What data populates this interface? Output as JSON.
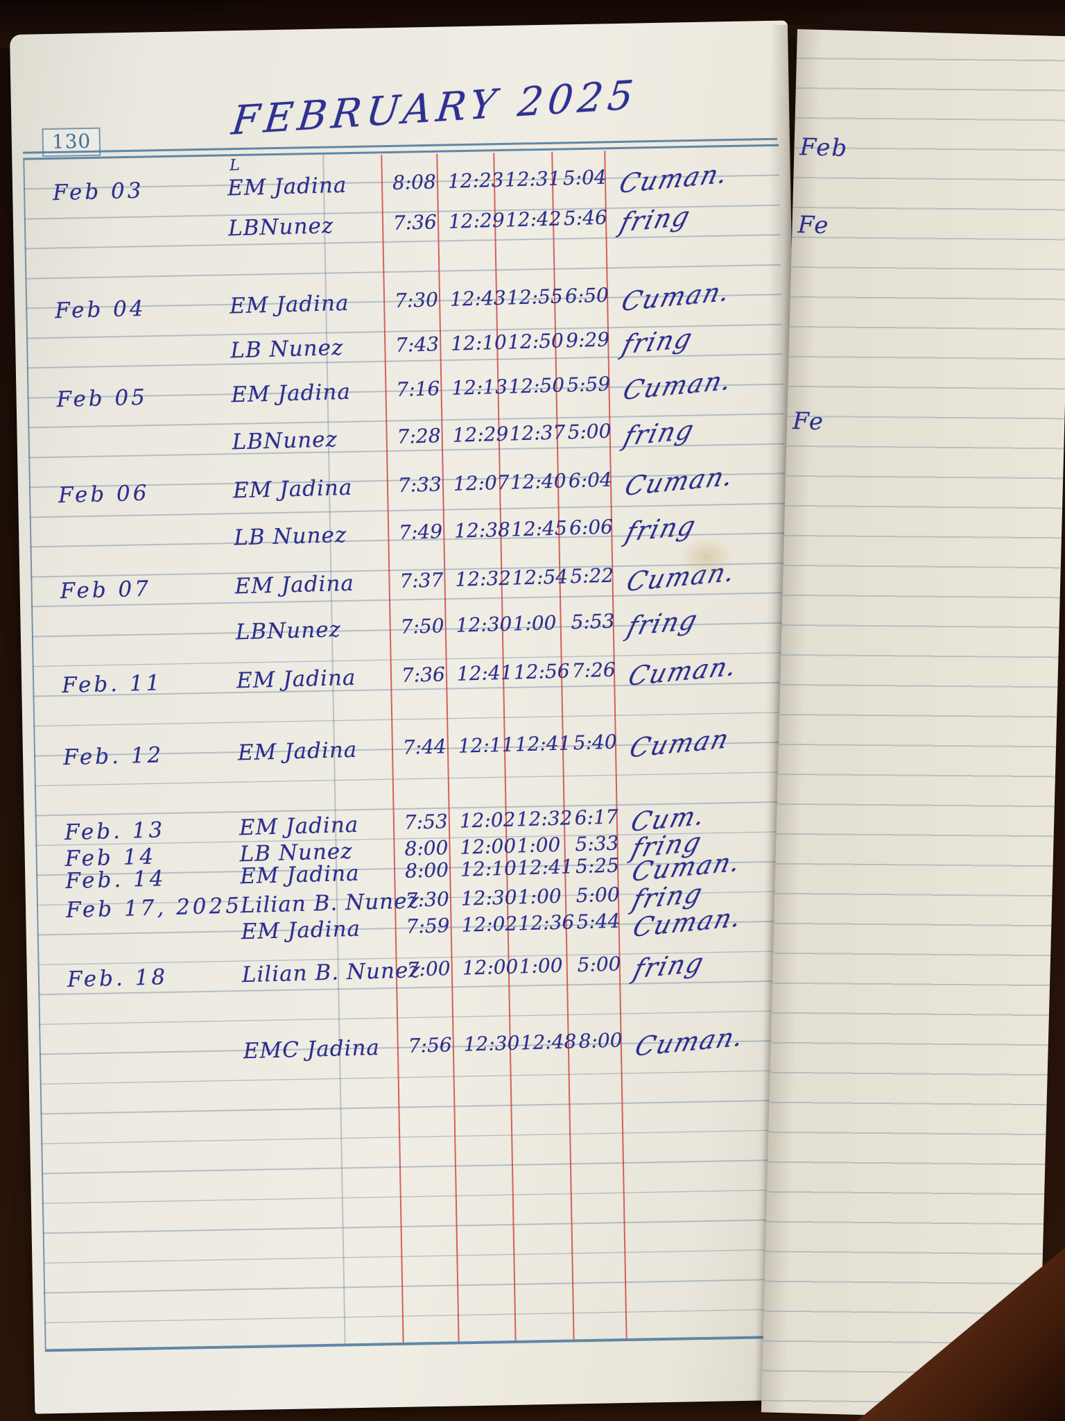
{
  "page": {
    "number": "130",
    "title": "FEBRUARY 2025"
  },
  "ink_colors": {
    "handwriting_ink": "#2c2f8e",
    "red_column_line": "#c93e3a",
    "blue_rule_line": "#7492ac",
    "printed_page_number": "#3d6e9c"
  },
  "entries": [
    {
      "date": "Feb 03",
      "note": "L",
      "name": "EM Jadina",
      "times": [
        "8:08",
        "12:23",
        "12:31",
        "5:04"
      ],
      "signature": "Cuman."
    },
    {
      "date": "",
      "note": "",
      "name": "LBNunez",
      "times": [
        "7:36",
        "12:29",
        "12:42",
        "5:46"
      ],
      "signature": "fring"
    },
    {
      "date": "Feb 04",
      "note": "",
      "name": "EM Jadina",
      "times": [
        "7:30",
        "12:43",
        "12:55",
        "6:50"
      ],
      "signature": "Cuman."
    },
    {
      "date": "",
      "note": "",
      "name": "LB Nunez",
      "times": [
        "7:43",
        "12:10",
        "12:50",
        "9:29"
      ],
      "signature": "fring"
    },
    {
      "date": "Feb 05",
      "note": "",
      "name": "EM Jadina",
      "times": [
        "7:16",
        "12:13",
        "12:50",
        "5:59"
      ],
      "signature": "Cuman."
    },
    {
      "date": "",
      "note": "",
      "name": "LBNunez",
      "times": [
        "7:28",
        "12:29",
        "12:37",
        "5:00"
      ],
      "signature": "fring"
    },
    {
      "date": "Feb 06",
      "note": "",
      "name": "EM Jadina",
      "times": [
        "7:33",
        "12:07",
        "12:40",
        "6:04"
      ],
      "signature": "Cuman."
    },
    {
      "date": "",
      "note": "",
      "name": "LB Nunez",
      "times": [
        "7:49",
        "12:38",
        "12:45",
        "6:06"
      ],
      "signature": "fring"
    },
    {
      "date": "Feb 07",
      "note": "",
      "name": "EM Jadina",
      "times": [
        "7:37",
        "12:32",
        "12:54",
        "5:22"
      ],
      "signature": "Cuman."
    },
    {
      "date": "",
      "note": "",
      "name": "LBNunez",
      "times": [
        "7:50",
        "12:30",
        "1:00",
        "5:53"
      ],
      "signature": "fring"
    },
    {
      "date": "Feb. 11",
      "note": "",
      "name": "EM Jadina",
      "times": [
        "7:36",
        "12:41",
        "12:56",
        "7:26"
      ],
      "signature": "Cuman."
    },
    {
      "date": "Feb. 12",
      "note": "",
      "name": "EM Jadina",
      "times": [
        "7:44",
        "12:11",
        "12:41",
        "5:40"
      ],
      "signature": "Cuman"
    },
    {
      "date": "Feb. 13",
      "note": "",
      "name": "EM Jadina",
      "times": [
        "7:53",
        "12:02",
        "12:32",
        "6:17"
      ],
      "signature": "Cum."
    },
    {
      "date": "Feb 14",
      "note": "",
      "name": "LB Nunez",
      "times": [
        "8:00",
        "12:00",
        "1:00",
        "5:33"
      ],
      "signature": "fring"
    },
    {
      "date": "Feb. 14",
      "note": "",
      "name": "EM Jadina",
      "times": [
        "8:00",
        "12:10",
        "12:41",
        "5:25"
      ],
      "signature": "Cuman."
    },
    {
      "date": "Feb 17, 2025",
      "note": "",
      "name": "Lilian B. Nunez",
      "times": [
        "7:30",
        "12:30",
        "1:00",
        "5:00"
      ],
      "signature": "fring"
    },
    {
      "date": "",
      "note": "",
      "name": "EM Jadina",
      "times": [
        "7:59",
        "12:02",
        "12:36",
        "5:44"
      ],
      "signature": "Cuman."
    },
    {
      "date": "Feb. 18",
      "note": "",
      "name": "Lilian B. Nunez",
      "times": [
        "7:00",
        "12:00",
        "1:00",
        "5:00"
      ],
      "signature": "fring"
    },
    {
      "date": "",
      "note": "",
      "name": "EMC Jadina",
      "times": [
        "7:56",
        "12:30",
        "12:48",
        "8:00"
      ],
      "signature": "Cuman."
    }
  ],
  "facing_page": {
    "snippets": [
      "Feb",
      "Fe",
      "Fe"
    ]
  }
}
